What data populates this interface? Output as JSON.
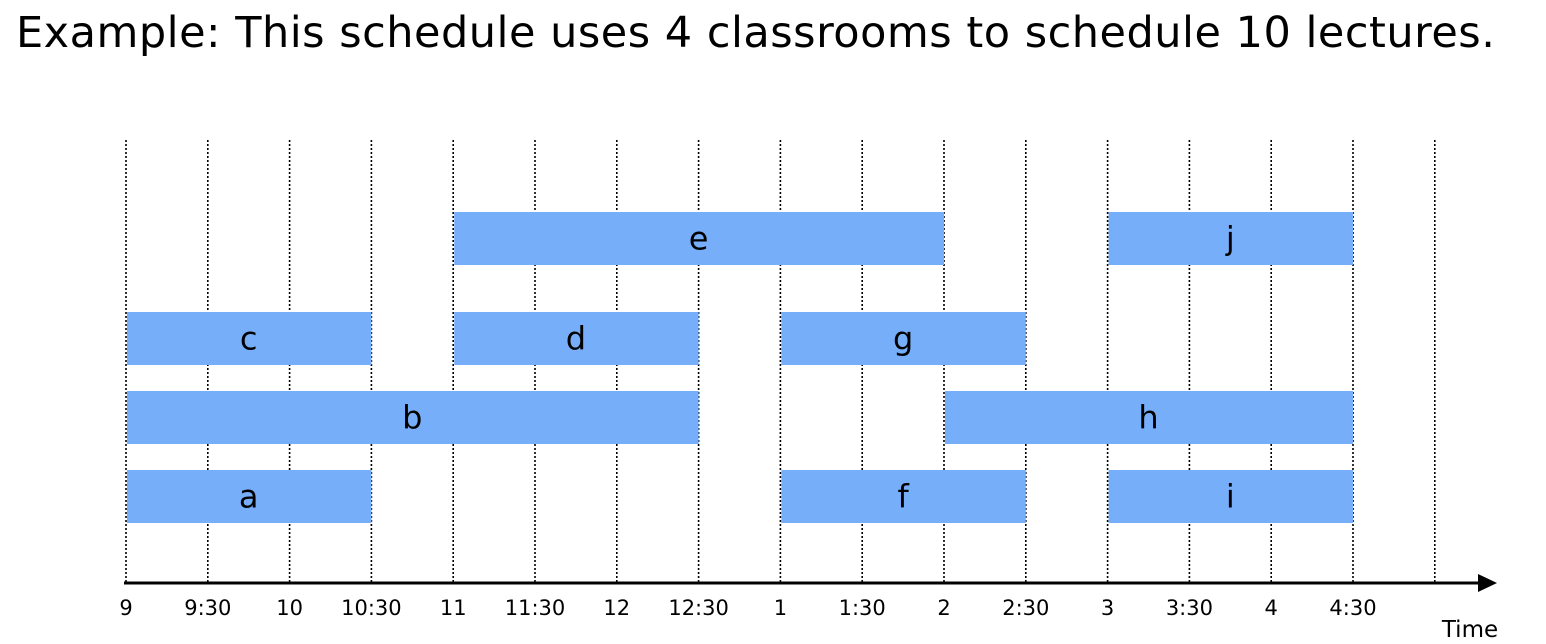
{
  "title": "Example:  This schedule uses 4 classrooms to schedule 10 lectures.",
  "chart_data": {
    "type": "gantt",
    "xlabel": "Time",
    "ticks": [
      "9",
      "9:30",
      "10",
      "10:30",
      "11",
      "11:30",
      "12",
      "12:30",
      "1",
      "1:30",
      "2",
      "2:30",
      "3",
      "3:30",
      "4",
      "4:30"
    ],
    "lectures": [
      {
        "label": "a",
        "start": 0,
        "end": 3,
        "classroom": 1
      },
      {
        "label": "b",
        "start": 0,
        "end": 7,
        "classroom": 2
      },
      {
        "label": "c",
        "start": 0,
        "end": 3,
        "classroom": 3
      },
      {
        "label": "d",
        "start": 4,
        "end": 7,
        "classroom": 3
      },
      {
        "label": "e",
        "start": 4,
        "end": 10,
        "classroom": 4
      },
      {
        "label": "f",
        "start": 8,
        "end": 11,
        "classroom": 1
      },
      {
        "label": "g",
        "start": 8,
        "end": 11,
        "classroom": 3
      },
      {
        "label": "h",
        "start": 10,
        "end": 15,
        "classroom": 2
      },
      {
        "label": "i",
        "start": 12,
        "end": 15,
        "classroom": 1
      },
      {
        "label": "j",
        "start": 12,
        "end": 15,
        "classroom": 4
      }
    ],
    "colors": {
      "bar": "#77aefa",
      "grid": "#000000",
      "axis": "#000000"
    }
  }
}
